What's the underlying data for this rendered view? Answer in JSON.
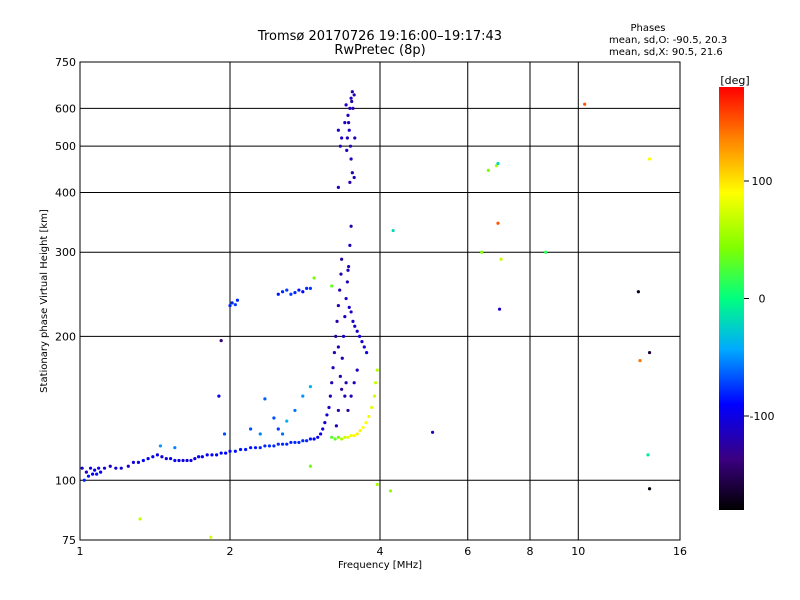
{
  "chart_data": {
    "type": "scatter",
    "title": "Tromsø 20170726 19:16:00–19:17:43",
    "subtitle": "RwPretec (8p)",
    "xlabel": "Frequency [MHz]",
    "ylabel": "Stationary phase Virtual Height [km]",
    "x_scale": "log2",
    "y_scale": "log",
    "xlim": [
      1,
      16
    ],
    "ylim": [
      75,
      750
    ],
    "x_ticks": [
      1,
      2,
      4,
      6,
      8,
      10,
      16
    ],
    "x_tick_labels": [
      "1",
      "2",
      "4",
      "6",
      "8",
      "10",
      "16"
    ],
    "y_ticks": [
      75,
      100,
      200,
      300,
      400,
      500,
      600,
      750
    ],
    "y_tick_labels": [
      "75",
      "100",
      "200",
      "300",
      "400",
      "500",
      "600",
      "750"
    ],
    "grid": true,
    "stats": {
      "heading": "Phases",
      "line_o": "mean, sd,O: -90.5, 20.3",
      "line_x": "mean, sd,X:  90.5, 21.6"
    },
    "colorbar": {
      "label": "[deg]",
      "range": [
        -180,
        180
      ],
      "ticks": [
        100,
        0,
        -100
      ],
      "tick_labels": [
        "100",
        "0",
        "-100"
      ]
    },
    "series": [
      {
        "points": [
          [
            1.01,
            106,
            -105
          ],
          [
            1.03,
            104,
            -110
          ],
          [
            1.05,
            106,
            -100
          ],
          [
            1.07,
            105,
            -95
          ],
          [
            1.09,
            106,
            -100
          ],
          [
            1.02,
            100,
            -80
          ],
          [
            1.04,
            102,
            -85
          ],
          [
            1.06,
            103,
            -90
          ],
          [
            1.08,
            103,
            -85
          ],
          [
            1.1,
            104,
            -90
          ],
          [
            1.12,
            106,
            -105
          ],
          [
            1.15,
            107,
            -110
          ],
          [
            1.18,
            106,
            -105
          ],
          [
            1.21,
            106,
            -100
          ],
          [
            1.25,
            107,
            -110
          ],
          [
            1.28,
            109,
            -105
          ],
          [
            1.31,
            109,
            -100
          ],
          [
            1.34,
            110,
            -90
          ],
          [
            1.37,
            111,
            -95
          ],
          [
            1.4,
            112,
            -95
          ],
          [
            1.43,
            113,
            -100
          ],
          [
            1.46,
            112,
            -105
          ],
          [
            1.49,
            111,
            -100
          ],
          [
            1.52,
            111,
            -100
          ],
          [
            1.55,
            110,
            -95
          ],
          [
            1.58,
            110,
            -100
          ],
          [
            1.61,
            110,
            -100
          ],
          [
            1.64,
            110,
            -105
          ],
          [
            1.67,
            110,
            -100
          ],
          [
            1.7,
            111,
            -100
          ],
          [
            1.73,
            112,
            -95
          ],
          [
            1.76,
            112,
            -95
          ],
          [
            1.8,
            113,
            -95
          ],
          [
            1.84,
            113,
            -90
          ],
          [
            1.88,
            113,
            -90
          ],
          [
            1.92,
            114,
            -90
          ],
          [
            1.96,
            114,
            -90
          ],
          [
            2.0,
            115,
            -90
          ],
          [
            2.05,
            115,
            -85
          ],
          [
            2.1,
            116,
            -85
          ],
          [
            2.15,
            116,
            -85
          ],
          [
            2.2,
            117,
            -85
          ],
          [
            2.25,
            117,
            -85
          ],
          [
            2.3,
            117,
            -80
          ],
          [
            2.35,
            118,
            -80
          ],
          [
            2.4,
            118,
            -80
          ],
          [
            2.45,
            118,
            -80
          ],
          [
            2.5,
            119,
            -80
          ],
          [
            2.55,
            119,
            -80
          ],
          [
            2.6,
            119,
            -80
          ],
          [
            2.65,
            120,
            -80
          ],
          [
            2.7,
            120,
            -80
          ],
          [
            2.75,
            120,
            -80
          ],
          [
            2.8,
            121,
            -80
          ],
          [
            2.85,
            121,
            -80
          ],
          [
            2.9,
            122,
            -85
          ],
          [
            2.95,
            122,
            -90
          ],
          [
            3.0,
            123,
            -95
          ],
          [
            3.04,
            125,
            -100
          ],
          [
            3.07,
            128,
            -105
          ],
          [
            3.1,
            132,
            -105
          ],
          [
            3.13,
            137,
            -105
          ],
          [
            3.16,
            142,
            -110
          ],
          [
            3.18,
            150,
            -110
          ],
          [
            3.2,
            160,
            -115
          ],
          [
            3.22,
            172,
            -115
          ],
          [
            3.24,
            185,
            -115
          ],
          [
            3.26,
            200,
            -120
          ],
          [
            3.28,
            215,
            -120
          ],
          [
            3.3,
            232,
            -120
          ],
          [
            3.32,
            250,
            -120
          ],
          [
            3.34,
            270,
            -120
          ],
          [
            3.33,
            165,
            -115
          ],
          [
            3.3,
            190,
            -115
          ],
          [
            3.36,
            180,
            -110
          ],
          [
            3.38,
            200,
            -110
          ],
          [
            3.4,
            220,
            -110
          ],
          [
            3.42,
            240,
            -110
          ],
          [
            3.44,
            260,
            -115
          ],
          [
            3.46,
            280,
            -115
          ],
          [
            3.48,
            310,
            -115
          ],
          [
            3.5,
            340,
            -120
          ],
          [
            3.47,
            230,
            -110
          ],
          [
            3.5,
            225,
            -110
          ],
          [
            3.53,
            215,
            -110
          ],
          [
            3.56,
            210,
            -110
          ],
          [
            3.6,
            205,
            -110
          ],
          [
            3.64,
            200,
            -105
          ],
          [
            3.68,
            195,
            -105
          ],
          [
            3.72,
            190,
            -105
          ],
          [
            3.76,
            185,
            -100
          ],
          [
            3.4,
            150,
            -120
          ],
          [
            3.45,
            140,
            -125
          ],
          [
            3.42,
            160,
            -120
          ],
          [
            3.35,
            155,
            -125
          ],
          [
            3.3,
            140,
            -120
          ],
          [
            3.27,
            130,
            -115
          ],
          [
            3.5,
            150,
            -115
          ],
          [
            3.55,
            160,
            -115
          ],
          [
            3.6,
            170,
            -110
          ],
          [
            3.44,
            520,
            -115
          ],
          [
            3.46,
            560,
            -115
          ],
          [
            3.48,
            600,
            -115
          ],
          [
            3.5,
            630,
            -115
          ],
          [
            3.52,
            650,
            -115
          ],
          [
            3.45,
            580,
            -110
          ],
          [
            3.47,
            540,
            -110
          ],
          [
            3.49,
            500,
            -115
          ],
          [
            3.51,
            620,
            -120
          ],
          [
            3.53,
            600,
            -120
          ],
          [
            3.43,
            490,
            -115
          ],
          [
            3.55,
            640,
            -115
          ],
          [
            3.4,
            560,
            -110
          ],
          [
            3.42,
            610,
            -110
          ],
          [
            3.56,
            520,
            -115
          ],
          [
            3.35,
            520,
            -110
          ],
          [
            3.3,
            540,
            -110
          ],
          [
            3.33,
            500,
            -115
          ],
          [
            3.5,
            470,
            -115
          ],
          [
            3.52,
            440,
            -120
          ],
          [
            3.48,
            420,
            -120
          ],
          [
            3.55,
            430,
            -115
          ],
          [
            3.3,
            410,
            -110
          ],
          [
            3.2,
            123,
            30
          ],
          [
            3.25,
            122,
            35
          ],
          [
            3.3,
            123,
            40
          ],
          [
            3.35,
            122,
            60
          ],
          [
            3.4,
            123,
            75
          ],
          [
            3.45,
            123,
            80
          ],
          [
            3.5,
            124,
            85
          ],
          [
            3.55,
            124,
            90
          ],
          [
            3.6,
            125,
            95
          ],
          [
            3.65,
            127,
            95
          ],
          [
            3.7,
            129,
            90
          ],
          [
            3.75,
            132,
            90
          ],
          [
            3.8,
            136,
            85
          ],
          [
            3.85,
            142,
            80
          ],
          [
            3.9,
            150,
            75
          ],
          [
            3.92,
            160,
            70
          ],
          [
            3.95,
            170,
            65
          ],
          [
            2.35,
            148,
            -65
          ],
          [
            2.45,
            135,
            -70
          ],
          [
            2.5,
            128,
            -75
          ],
          [
            2.55,
            125,
            -60
          ],
          [
            2.6,
            133,
            -40
          ],
          [
            2.7,
            140,
            -60
          ],
          [
            2.8,
            150,
            -50
          ],
          [
            2.9,
            157,
            -40
          ],
          [
            2.3,
            125,
            -55
          ],
          [
            2.2,
            128,
            -70
          ],
          [
            2.5,
            245,
            -85
          ],
          [
            2.55,
            248,
            -80
          ],
          [
            2.6,
            250,
            -75
          ],
          [
            2.65,
            245,
            -75
          ],
          [
            2.7,
            247,
            -80
          ],
          [
            2.75,
            250,
            -85
          ],
          [
            2.8,
            248,
            -90
          ],
          [
            2.85,
            252,
            -80
          ],
          [
            2.9,
            252,
            -75
          ],
          [
            2.0,
            232,
            -80
          ],
          [
            2.02,
            235,
            -80
          ],
          [
            2.05,
            233,
            -75
          ],
          [
            2.07,
            238,
            -80
          ],
          [
            2.95,
            265,
            40
          ],
          [
            3.2,
            255,
            35
          ],
          [
            3.35,
            290,
            -120
          ],
          [
            3.45,
            275,
            -110
          ],
          [
            1.32,
            83,
            70
          ],
          [
            1.83,
            76,
            75
          ],
          [
            2.9,
            107,
            40
          ],
          [
            3.95,
            98,
            60
          ],
          [
            4.2,
            95,
            50
          ],
          [
            4.25,
            333,
            -20
          ],
          [
            5.1,
            126,
            -115
          ],
          [
            6.4,
            300,
            45
          ],
          [
            6.6,
            445,
            45
          ],
          [
            6.85,
            455,
            60
          ],
          [
            6.9,
            460,
            -20
          ],
          [
            7.0,
            290,
            70
          ],
          [
            6.9,
            345,
            150
          ],
          [
            6.95,
            228,
            -110
          ],
          [
            8.6,
            300,
            15
          ],
          [
            10.3,
            612,
            150
          ],
          [
            13.2,
            248,
            -170
          ],
          [
            13.3,
            178,
            140
          ],
          [
            13.9,
            470,
            90
          ],
          [
            13.8,
            113,
            -10
          ],
          [
            13.9,
            185,
            -160
          ],
          [
            13.9,
            96,
            -175
          ],
          [
            1.45,
            118,
            -50
          ],
          [
            1.55,
            117,
            -55
          ],
          [
            1.92,
            196,
            -140
          ],
          [
            1.9,
            150,
            -95
          ],
          [
            1.95,
            125,
            -70
          ]
        ]
      }
    ]
  }
}
